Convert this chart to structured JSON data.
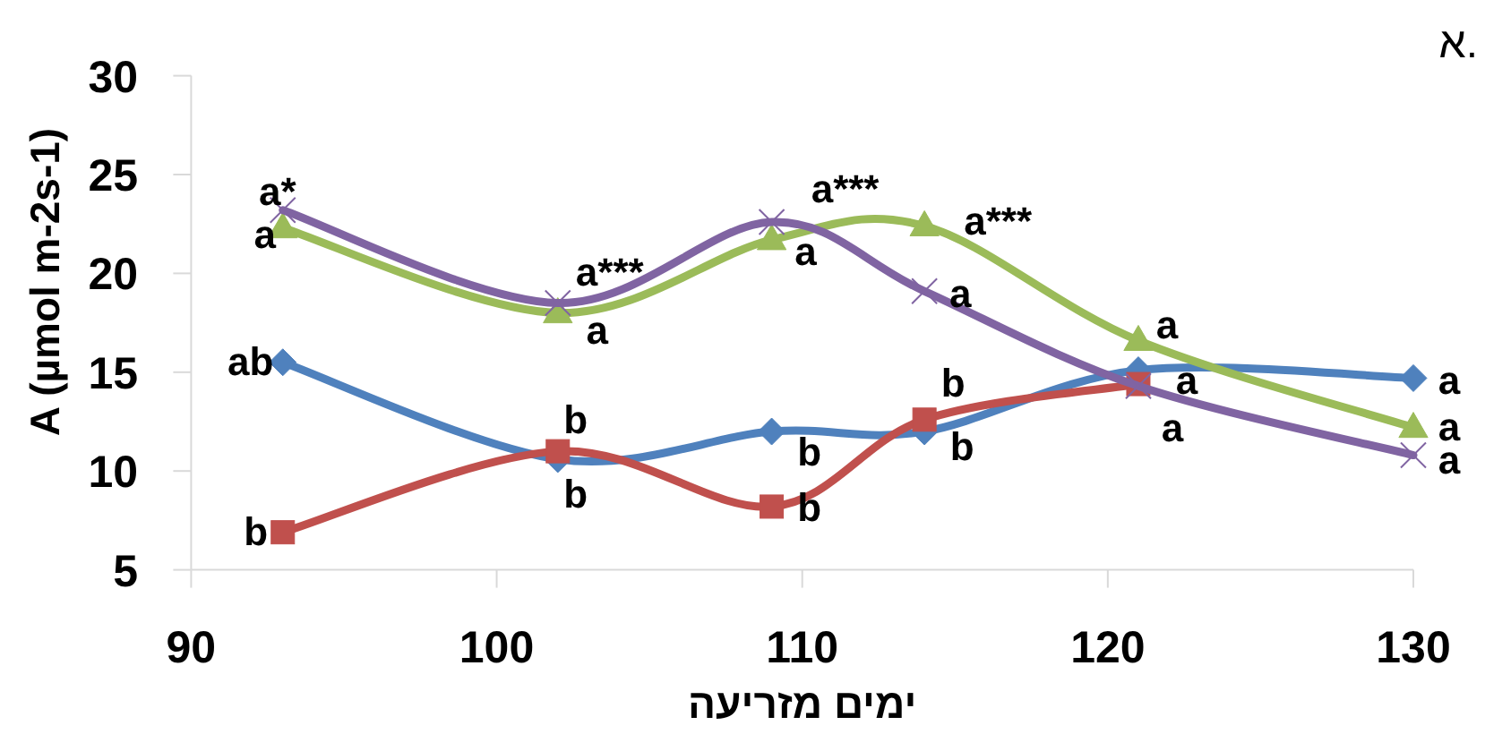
{
  "chart_data": {
    "type": "line",
    "xlabel": "ימים מזריעה",
    "ylabel": "A (µmol m-2s-1)",
    "x": [
      93,
      102,
      109,
      114,
      121,
      130
    ],
    "series": [
      {
        "color": "#4f81bd",
        "marker": "diamond",
        "values": [
          15.5,
          10.6,
          12.0,
          12.0,
          15.1,
          14.7
        ]
      },
      {
        "color": "#c0504d",
        "marker": "square",
        "values": [
          6.9,
          11.0,
          8.2,
          12.6,
          14.4,
          null
        ]
      },
      {
        "color": "#9bbb59",
        "marker": "triangle",
        "values": [
          22.3,
          18.0,
          21.7,
          22.4,
          16.6,
          12.2
        ]
      },
      {
        "color": "#8064a2",
        "marker": "cross",
        "values": [
          23.2,
          18.5,
          22.6,
          19.1,
          14.3,
          10.8
        ]
      }
    ],
    "xlim": [
      90,
      130
    ],
    "xticks": [
      90,
      100,
      110,
      120,
      130
    ],
    "ylim": [
      5,
      30
    ],
    "yticks": [
      5,
      10,
      15,
      20,
      25,
      30
    ],
    "annotations": [
      {
        "text": "a*",
        "x": 93,
        "y": 23.2
      },
      {
        "text": "a",
        "x": 93,
        "y": 22.3
      },
      {
        "text": "ab",
        "x": 93,
        "y": 15.5
      },
      {
        "text": "b",
        "x": 93,
        "y": 6.9
      },
      {
        "text": "a***",
        "x": 102,
        "y": 18.5
      },
      {
        "text": "a",
        "x": 102,
        "y": 18.0
      },
      {
        "text": "b",
        "x": 102,
        "y": 11.0
      },
      {
        "text": "b",
        "x": 102,
        "y": 10.6
      },
      {
        "text": "a***",
        "x": 109,
        "y": 22.6
      },
      {
        "text": "a",
        "x": 109,
        "y": 21.7
      },
      {
        "text": "b",
        "x": 109,
        "y": 12.0
      },
      {
        "text": "b",
        "x": 109,
        "y": 8.2
      },
      {
        "text": "a***",
        "x": 114,
        "y": 22.4
      },
      {
        "text": "a",
        "x": 114,
        "y": 19.1
      },
      {
        "text": "b",
        "x": 114,
        "y": 12.6
      },
      {
        "text": "b",
        "x": 114,
        "y": 12.0
      },
      {
        "text": "a",
        "x": 121,
        "y": 16.6
      },
      {
        "text": "a",
        "x": 121,
        "y": 15.1
      },
      {
        "text": "a",
        "x": 121,
        "y": 14.4
      },
      {
        "text": "a",
        "x": 130,
        "y": 14.7
      },
      {
        "text": "a",
        "x": 130,
        "y": 12.2
      },
      {
        "text": "a",
        "x": 130,
        "y": 10.8
      },
      "א."
    ]
  }
}
